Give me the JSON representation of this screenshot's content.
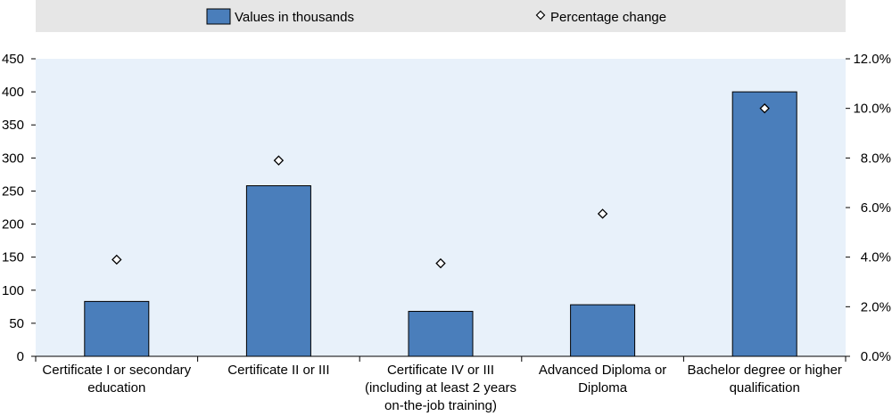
{
  "chart_data": {
    "type": "bar",
    "categories": [
      [
        "Certificate I or secondary",
        "education"
      ],
      [
        "Certificate II or III"
      ],
      [
        "Certificate IV or III",
        "(including at least 2 years",
        "on-the-job training)"
      ],
      [
        "Advanced Diploma or",
        "Diploma"
      ],
      [
        "Bachelor degree or higher",
        "qualification"
      ]
    ],
    "series": [
      {
        "name": "Values in thousands",
        "type": "bar",
        "axis": "left",
        "color": "#4a7ebb",
        "values": [
          83,
          258,
          68,
          78,
          400
        ]
      },
      {
        "name": "Percentage change",
        "type": "scatter",
        "axis": "right",
        "marker": "diamond",
        "values": [
          3.9,
          7.9,
          3.75,
          5.75,
          10.0
        ]
      }
    ],
    "y_left": {
      "ylim": [
        0,
        450
      ],
      "ticks": [
        0,
        50,
        100,
        150,
        200,
        250,
        300,
        350,
        400,
        450
      ]
    },
    "y_right": {
      "ylim": [
        0,
        12
      ],
      "ticks": [
        "0.0%",
        "2.0%",
        "4.0%",
        "6.0%",
        "8.0%",
        "10.0%",
        "12.0%"
      ]
    },
    "legend": {
      "position": "top",
      "background": "#e6e6e6"
    },
    "plot_background": "#e8f1fa",
    "grid": false,
    "title": "",
    "xlabel": "",
    "ylabel": ""
  }
}
